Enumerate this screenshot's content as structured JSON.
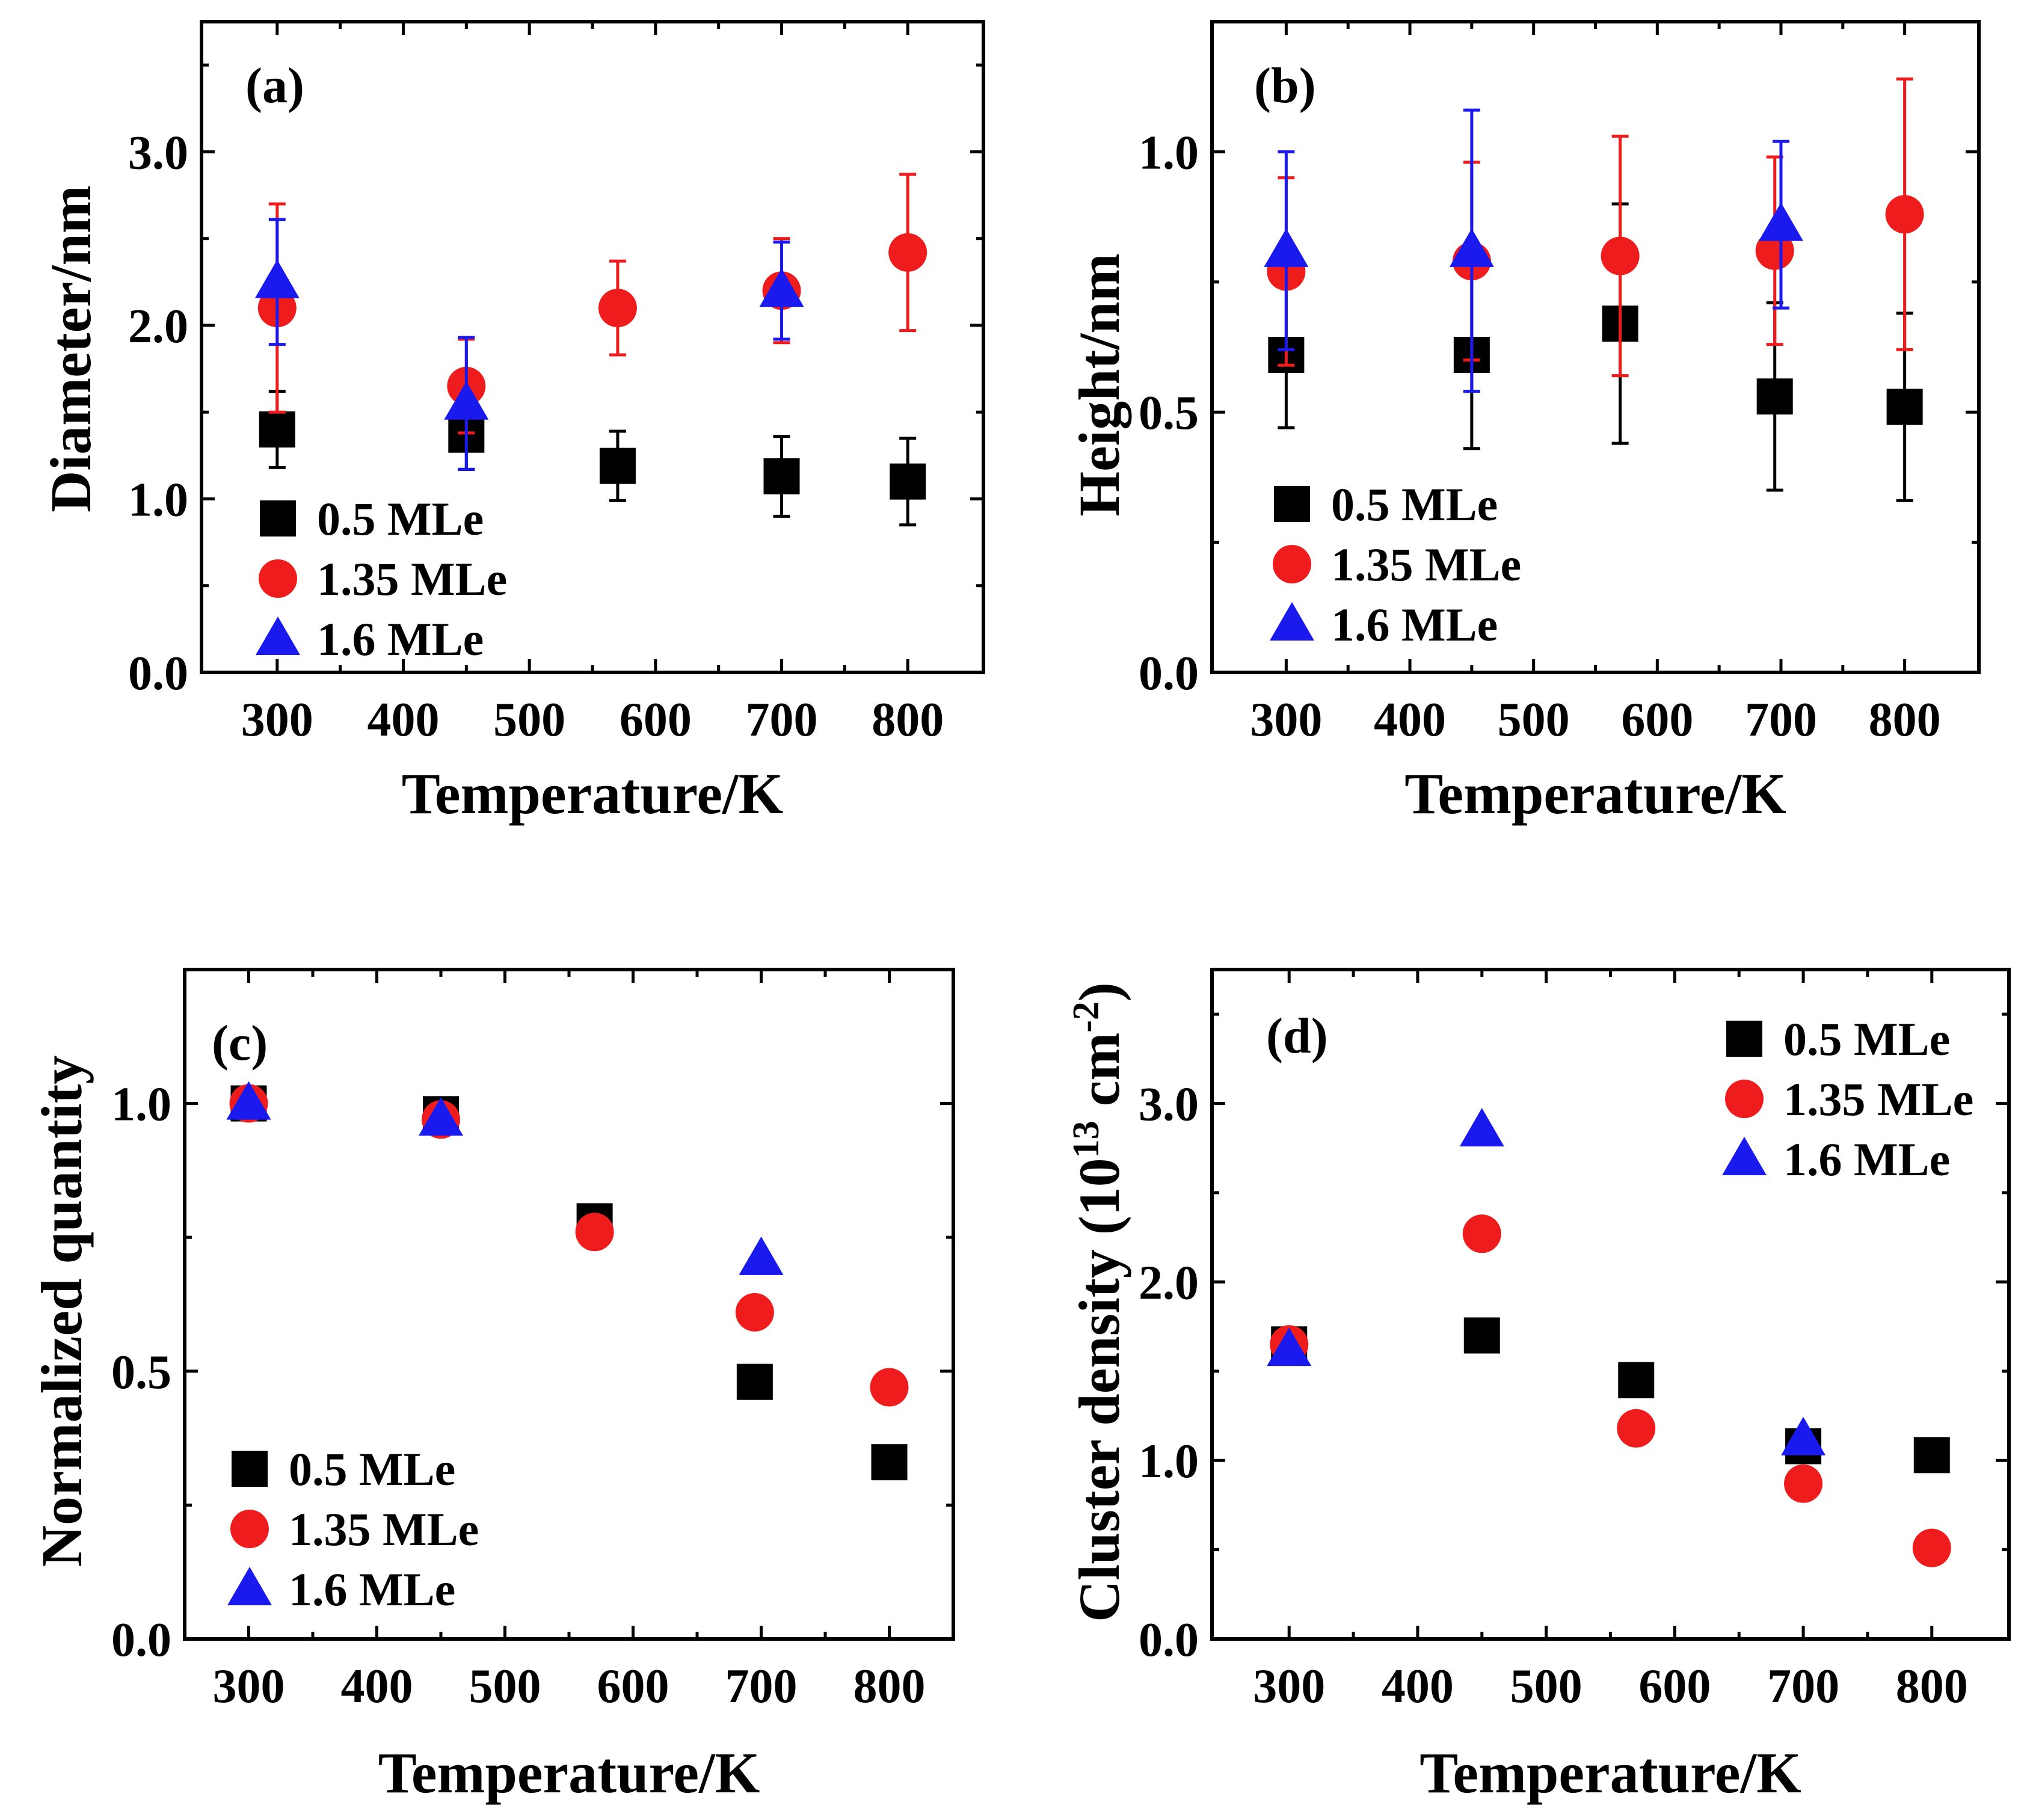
{
  "colors": {
    "black": "#000000",
    "red": "#ee1c1c",
    "blue": "#1a1aee"
  },
  "legend": [
    "0.5 MLe",
    "1.35 MLe",
    "1.6 MLe"
  ],
  "chart_data": [
    {
      "panel": "(a)",
      "type": "scatter",
      "xlabel": "Temperature/K",
      "ylabel": "Diameter/nm",
      "xlim": [
        240,
        860
      ],
      "ylim": [
        0,
        3.75
      ],
      "xticks": [
        300,
        400,
        500,
        600,
        700,
        800
      ],
      "yticks": [
        0.0,
        1.0,
        2.0,
        3.0
      ],
      "ytick_labels": [
        "0.0",
        "1.0",
        "2.0",
        "3.0"
      ],
      "legend_position": "bottom-left",
      "series": [
        {
          "name": "0.5 MLe",
          "marker": "square",
          "color": "#000000",
          "x": [
            300,
            450,
            570,
            700,
            800
          ],
          "y": [
            1.4,
            1.37,
            1.19,
            1.13,
            1.1
          ],
          "err": [
            0.22,
            0.2,
            0.2,
            0.23,
            0.25
          ]
        },
        {
          "name": "1.35 MLe",
          "marker": "circle",
          "color": "#ee1c1c",
          "x": [
            300,
            450,
            570,
            700,
            800
          ],
          "y": [
            2.1,
            1.65,
            2.1,
            2.2,
            2.42
          ],
          "err": [
            0.6,
            0.27,
            0.27,
            0.3,
            0.45
          ]
        },
        {
          "name": "1.6 MLe",
          "marker": "triangle",
          "color": "#1a1aee",
          "x": [
            300,
            450,
            700
          ],
          "y": [
            2.25,
            1.55,
            2.2
          ],
          "err": [
            0.36,
            0.38,
            0.28
          ]
        }
      ]
    },
    {
      "panel": "(b)",
      "type": "scatter",
      "xlabel": "Temperature/K",
      "ylabel": "Height/nm",
      "xlim": [
        240,
        860
      ],
      "ylim": [
        0,
        1.25
      ],
      "xticks": [
        300,
        400,
        500,
        600,
        700,
        800
      ],
      "yticks": [
        0.0,
        0.5,
        1.0
      ],
      "ytick_labels": [
        "0.0",
        "0.5",
        "1.0"
      ],
      "legend_position": "bottom-left",
      "series": [
        {
          "name": "0.5 MLe",
          "marker": "square",
          "color": "#000000",
          "x": [
            300,
            450,
            570,
            695,
            800
          ],
          "y": [
            0.61,
            0.61,
            0.67,
            0.53,
            0.51
          ],
          "err": [
            0.14,
            0.18,
            0.23,
            0.18,
            0.18
          ]
        },
        {
          "name": "1.35 MLe",
          "marker": "circle",
          "color": "#ee1c1c",
          "x": [
            300,
            450,
            570,
            695,
            800
          ],
          "y": [
            0.77,
            0.79,
            0.8,
            0.81,
            0.88
          ],
          "err": [
            0.18,
            0.19,
            0.23,
            0.18,
            0.26
          ]
        },
        {
          "name": "1.6 MLe",
          "marker": "triangle",
          "color": "#1a1aee",
          "x": [
            300,
            450,
            700
          ],
          "y": [
            0.81,
            0.81,
            0.86
          ],
          "err": [
            0.19,
            0.27,
            0.16
          ]
        }
      ]
    },
    {
      "panel": "(c)",
      "type": "scatter",
      "xlabel": "Temperature/K",
      "ylabel": "Normalized quantity",
      "xlim": [
        250,
        850
      ],
      "ylim": [
        0,
        1.25
      ],
      "xticks": [
        300,
        400,
        500,
        600,
        700,
        800
      ],
      "yticks": [
        0.0,
        0.5,
        1.0
      ],
      "ytick_labels": [
        "0.0",
        "0.5",
        "1.0"
      ],
      "legend_position": "bottom-left",
      "series": [
        {
          "name": "0.5 MLe",
          "marker": "square",
          "color": "#000000",
          "x": [
            300,
            450,
            570,
            695,
            800
          ],
          "y": [
            1.0,
            0.98,
            0.78,
            0.48,
            0.33
          ]
        },
        {
          "name": "1.35 MLe",
          "marker": "circle",
          "color": "#ee1c1c",
          "x": [
            300,
            450,
            570,
            695,
            800
          ],
          "y": [
            1.0,
            0.97,
            0.76,
            0.61,
            0.47
          ]
        },
        {
          "name": "1.6 MLe",
          "marker": "triangle",
          "color": "#1a1aee",
          "x": [
            300,
            450,
            700
          ],
          "y": [
            1.0,
            0.97,
            0.71
          ]
        }
      ]
    },
    {
      "panel": "(d)",
      "type": "scatter",
      "xlabel": "Temperature/K",
      "ylabel": "Cluster density (10",
      "ylabel_sup1": "13",
      "ylabel_mid": " cm",
      "ylabel_sup2": "-2",
      "ylabel_end": ")",
      "xlim": [
        240,
        860
      ],
      "ylim": [
        0,
        3.75
      ],
      "xticks": [
        300,
        400,
        500,
        600,
        700,
        800
      ],
      "yticks": [
        0.0,
        1.0,
        2.0,
        3.0
      ],
      "ytick_labels": [
        "0.0",
        "1.0",
        "2.0",
        "3.0"
      ],
      "legend_position": "top-right",
      "series": [
        {
          "name": "0.5 MLe",
          "marker": "square",
          "color": "#000000",
          "x": [
            300,
            450,
            570,
            700,
            800
          ],
          "y": [
            1.65,
            1.7,
            1.45,
            1.08,
            1.03
          ]
        },
        {
          "name": "1.35 MLe",
          "marker": "circle",
          "color": "#ee1c1c",
          "x": [
            300,
            450,
            570,
            700,
            800
          ],
          "y": [
            1.65,
            2.27,
            1.18,
            0.87,
            0.51
          ]
        },
        {
          "name": "1.6 MLe",
          "marker": "triangle",
          "color": "#1a1aee",
          "x": [
            300,
            450,
            700
          ],
          "y": [
            1.62,
            2.85,
            1.12
          ]
        }
      ]
    }
  ]
}
